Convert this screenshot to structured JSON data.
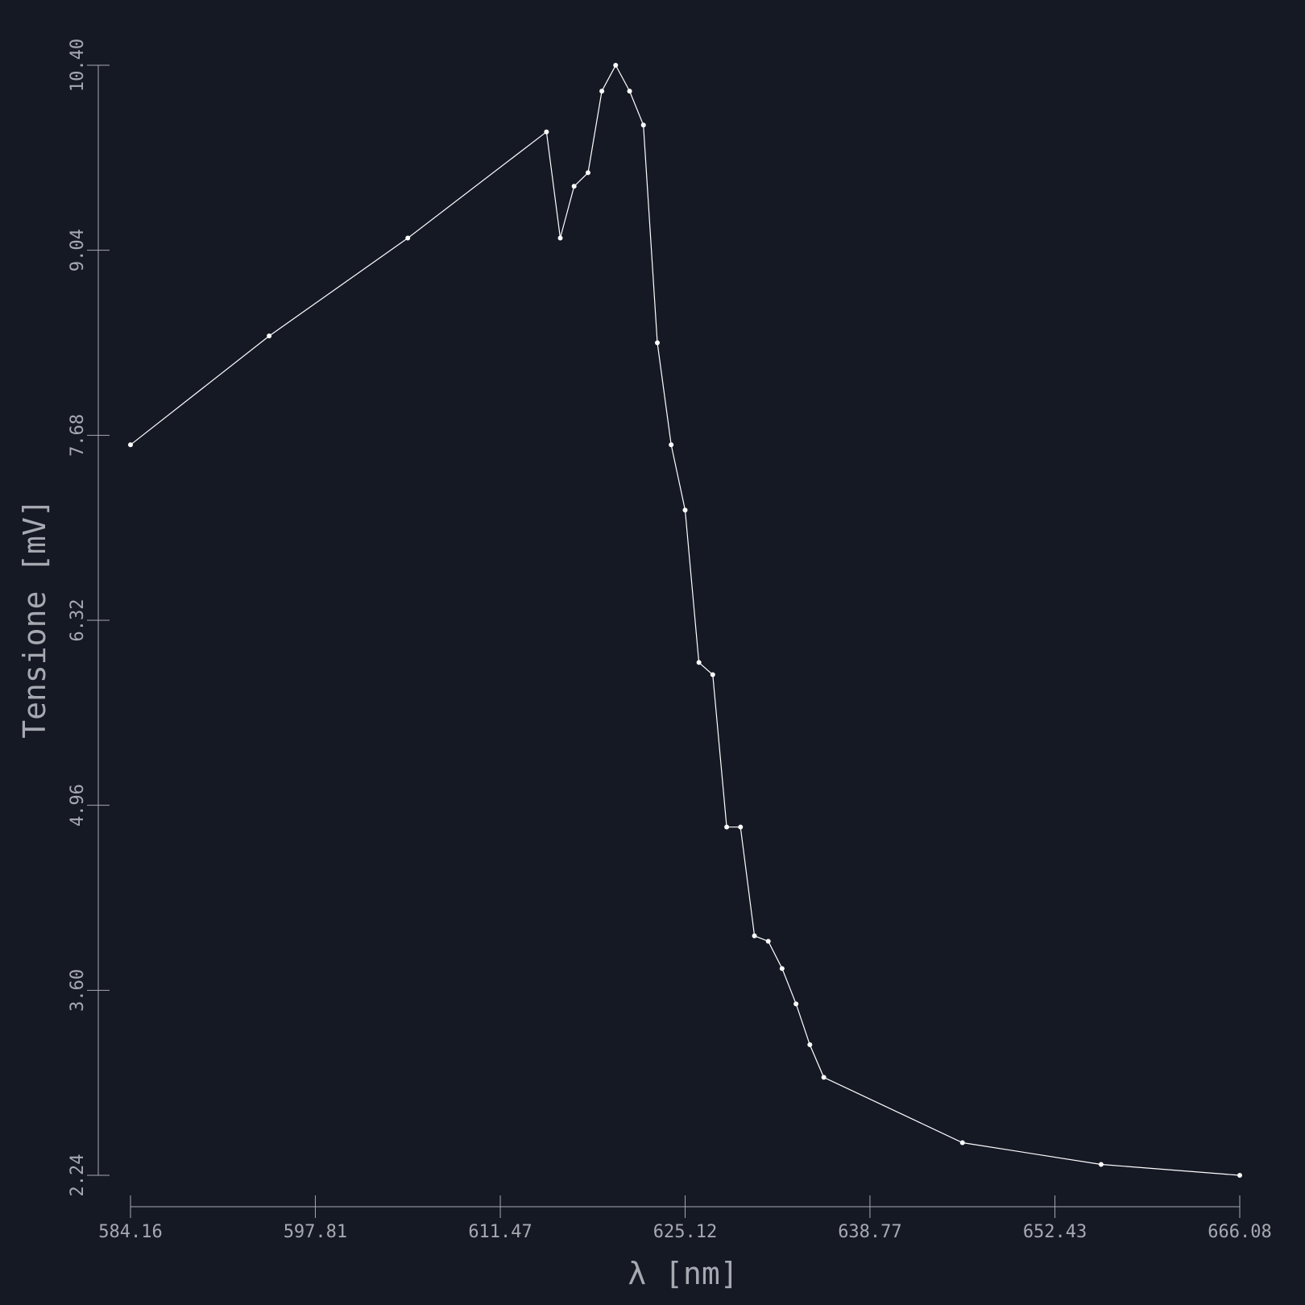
{
  "chart_data": {
    "type": "line",
    "xlabel": "λ [nm]",
    "ylabel": "Tensione [mV]",
    "xlim": [
      584.16,
      666.08
    ],
    "ylim": [
      2.24,
      10.4
    ],
    "xticks": [
      "584.16",
      "597.81",
      "611.47",
      "625.12",
      "638.77",
      "652.43",
      "666.08"
    ],
    "yticks": [
      "2.24",
      "3.60",
      "4.96",
      "6.32",
      "7.68",
      "9.04",
      "10.40"
    ],
    "grid": false,
    "colors": {
      "background": "#151924",
      "axis": "#a6a9b0",
      "series": "#ffffff"
    },
    "series": [
      {
        "x": [
          584.16,
          594.4,
          604.64,
          614.88,
          615.9,
          616.92,
          617.95,
          618.97,
          619.99,
          621.02,
          622.04,
          623.07,
          624.09,
          625.12,
          626.14,
          627.16,
          628.19,
          629.21,
          630.24,
          631.26,
          632.28,
          633.31,
          634.33,
          635.36,
          645.6,
          655.84,
          666.08
        ],
        "y": [
          7.61,
          8.41,
          9.13,
          9.91,
          9.13,
          9.51,
          9.61,
          10.21,
          10.4,
          10.21,
          9.96,
          8.36,
          7.61,
          7.13,
          6.01,
          5.92,
          4.8,
          4.8,
          4.0,
          3.96,
          3.76,
          3.5,
          3.2,
          2.96,
          2.48,
          2.32,
          2.24
        ]
      }
    ]
  }
}
